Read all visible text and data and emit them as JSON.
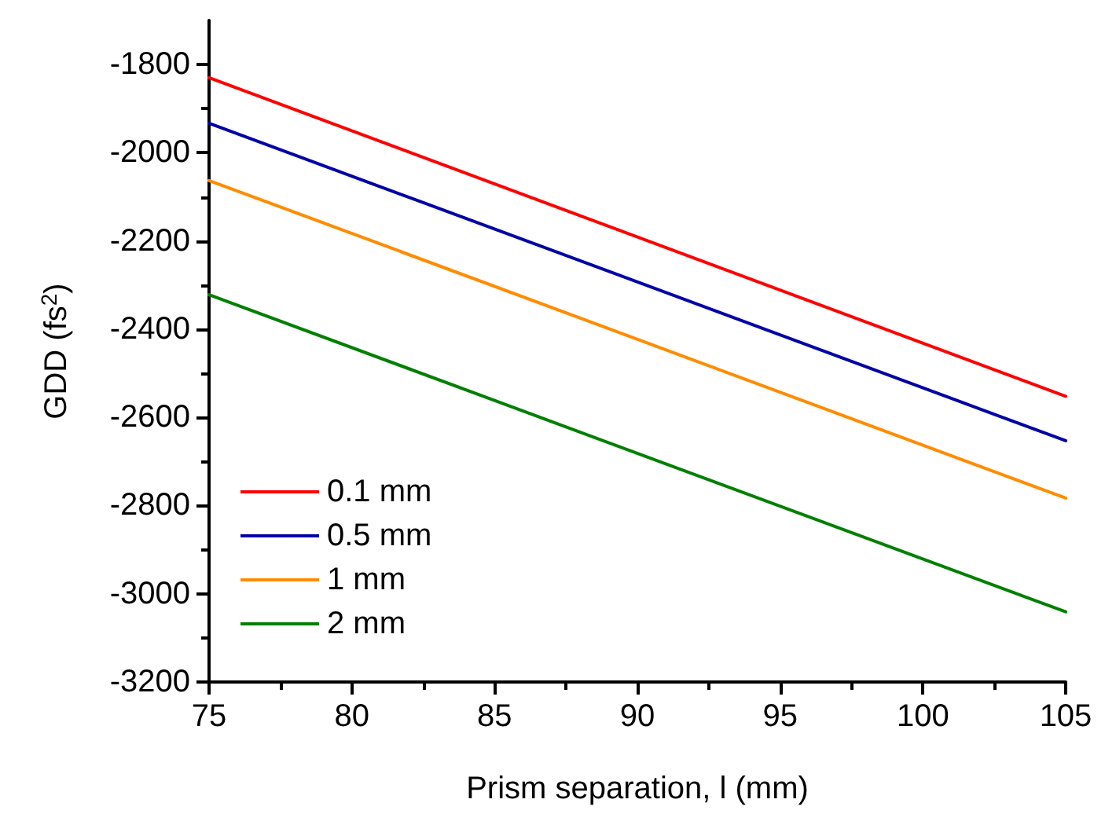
{
  "chart_data": {
    "type": "line",
    "xlabel": "Prism separation, l (mm)",
    "ylabel": "GDD (fs$^{2}$)",
    "x": [
      75,
      105
    ],
    "series": [
      {
        "name": "0.1 mm",
        "color": "#ff0000",
        "values": [
          -1830,
          -2552
        ]
      },
      {
        "name": "0.5 mm",
        "color": "#0000a8",
        "values": [
          -1933,
          -2653
        ]
      },
      {
        "name": "1 mm",
        "color": "#ff8c00",
        "values": [
          -2063,
          -2783
        ]
      },
      {
        "name": "2 mm",
        "color": "#008000",
        "values": [
          -2322,
          -3041
        ]
      }
    ],
    "xlim": [
      75,
      105
    ],
    "xticks": [
      75,
      80,
      85,
      90,
      95,
      100,
      105
    ],
    "ylim": [
      -3200,
      -1700
    ],
    "yticks": [
      -3200,
      -3000,
      -2800,
      -2600,
      -2400,
      -2200,
      -2000,
      -1800
    ],
    "grid": false,
    "legend": "bottom left",
    "marker": "none",
    "line_style": "solid"
  }
}
